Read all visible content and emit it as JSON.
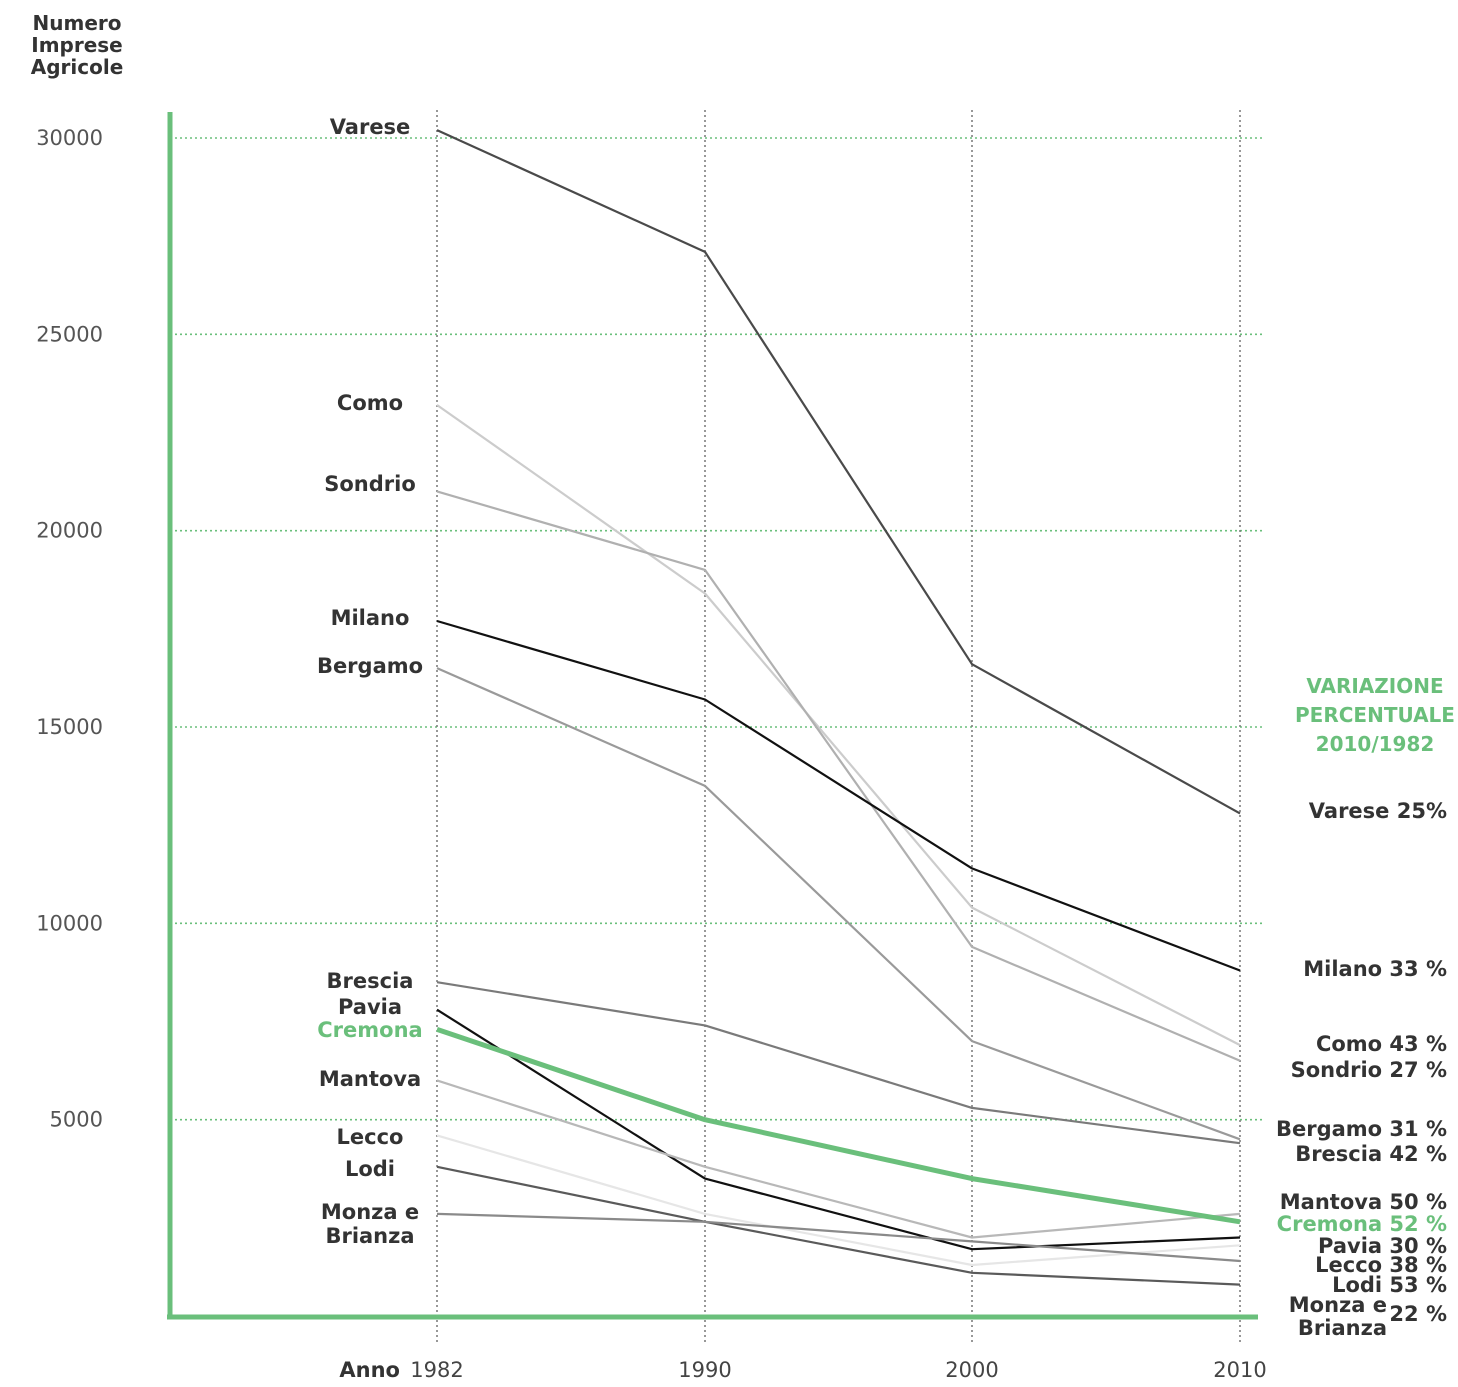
{
  "colors": {
    "accent": "#6abf7b"
  },
  "side_title": [
    "VARIAZIONE",
    "PERCENTUALE",
    "2010/1982"
  ],
  "chart_data": {
    "type": "line",
    "ylabel": [
      "Numero",
      "Imprese",
      "Agricole"
    ],
    "xlabel": "Anno",
    "x": [
      1982,
      1990,
      2000,
      2010
    ],
    "xticks": [
      "1982",
      "1990",
      "2000",
      "2010"
    ],
    "ylim": [
      0,
      30000
    ],
    "yticks": [
      "5000",
      "10000",
      "15000",
      "20000",
      "25000",
      "30000"
    ],
    "grid": true,
    "series": [
      {
        "name": "Varese",
        "color": "#4a4a4a",
        "values": [
          30200,
          27100,
          16600,
          12800
        ],
        "end_label": "Varese 25%"
      },
      {
        "name": "Como",
        "color": "#cccccc",
        "values": [
          23200,
          18400,
          10400,
          6900
        ],
        "end_label": "Como 43 %"
      },
      {
        "name": "Sondrio",
        "color": "#b0b0b0",
        "values": [
          21000,
          19000,
          9400,
          6500
        ],
        "end_label": "Sondrio 27 %"
      },
      {
        "name": "Milano",
        "color": "#111111",
        "values": [
          17700,
          15700,
          11400,
          8800
        ],
        "end_label": "Milano 33 %"
      },
      {
        "name": "Bergamo",
        "color": "#9a9a9a",
        "values": [
          16500,
          13500,
          7000,
          4500
        ],
        "end_label": "Bergamo 31 %"
      },
      {
        "name": "Brescia",
        "color": "#7a7a7a",
        "values": [
          8500,
          7400,
          5300,
          4400
        ],
        "end_label": "Brescia 42 %"
      },
      {
        "name": "Pavia",
        "color": "#111111",
        "values": [
          7800,
          3500,
          1700,
          2000
        ],
        "end_label": "Pavia 30 %"
      },
      {
        "name": "Cremona",
        "color": "#6abf7b",
        "values": [
          7300,
          5000,
          3500,
          2400
        ],
        "end_label": "Cremona 52 %"
      },
      {
        "name": "Mantova",
        "color": "#b8b8b8",
        "values": [
          6000,
          3800,
          2000,
          2600
        ],
        "end_label": "Mantova 50 %"
      },
      {
        "name": "Lecco",
        "color": "#e6e6e6",
        "values": [
          4600,
          2600,
          1300,
          1800
        ],
        "end_label": "Lecco 38 %"
      },
      {
        "name": "Lodi",
        "color": "#5a5a5a",
        "values": [
          3800,
          2400,
          1100,
          800
        ],
        "end_label": "Lodi 53 %"
      },
      {
        "name": "Monza e Brianza",
        "color": "#8a8a8a",
        "values": [
          2600,
          2400,
          1900,
          1400
        ],
        "end_label": "Monza e Brianza 22 %"
      }
    ],
    "left_labels": [
      {
        "lines": [
          "Varese"
        ],
        "series": "Varese"
      },
      {
        "lines": [
          "Como"
        ],
        "series": "Como"
      },
      {
        "lines": [
          "Sondrio"
        ],
        "series": "Sondrio"
      },
      {
        "lines": [
          "Milano"
        ],
        "series": "Milano"
      },
      {
        "lines": [
          "Bergamo"
        ],
        "series": "Bergamo"
      },
      {
        "lines": [
          "Brescia"
        ],
        "series": "Brescia"
      },
      {
        "lines": [
          "Pavia"
        ],
        "series": "Pavia"
      },
      {
        "lines": [
          "Cremona"
        ],
        "series": "Cremona"
      },
      {
        "lines": [
          "Mantova"
        ],
        "series": "Mantova"
      },
      {
        "lines": [
          "Lecco"
        ],
        "series": "Lecco"
      },
      {
        "lines": [
          "Lodi"
        ],
        "series": "Lodi"
      },
      {
        "lines": [
          "Monza e",
          "Brianza"
        ],
        "series": "Monza e Brianza"
      }
    ],
    "right_labels": [
      {
        "lines": [
          "Varese 25%"
        ],
        "series": "Varese"
      },
      {
        "lines": [
          "Milano 33 %"
        ],
        "series": "Milano"
      },
      {
        "lines": [
          "Como 43 %"
        ],
        "series": "Como"
      },
      {
        "lines": [
          "Sondrio 27 %"
        ],
        "series": "Sondrio"
      },
      {
        "lines": [
          "Bergamo 31 %"
        ],
        "series": "Bergamo"
      },
      {
        "lines": [
          "Brescia 42 %"
        ],
        "series": "Brescia"
      },
      {
        "lines": [
          "Mantova 50 %"
        ],
        "series": "Mantova"
      },
      {
        "lines": [
          "Cremona 52 %"
        ],
        "series": "Cremona"
      },
      {
        "lines": [
          "Pavia 30 %"
        ],
        "series": "Pavia"
      },
      {
        "lines": [
          "Lecco 38 %"
        ],
        "series": "Lecco"
      },
      {
        "lines": [
          "Lodi 53 %"
        ],
        "series": "Lodi"
      },
      {
        "lines": [
          "Monza e",
          "Brianza"
        ],
        "pct": "22 %",
        "series": "Monza e Brianza"
      }
    ]
  }
}
